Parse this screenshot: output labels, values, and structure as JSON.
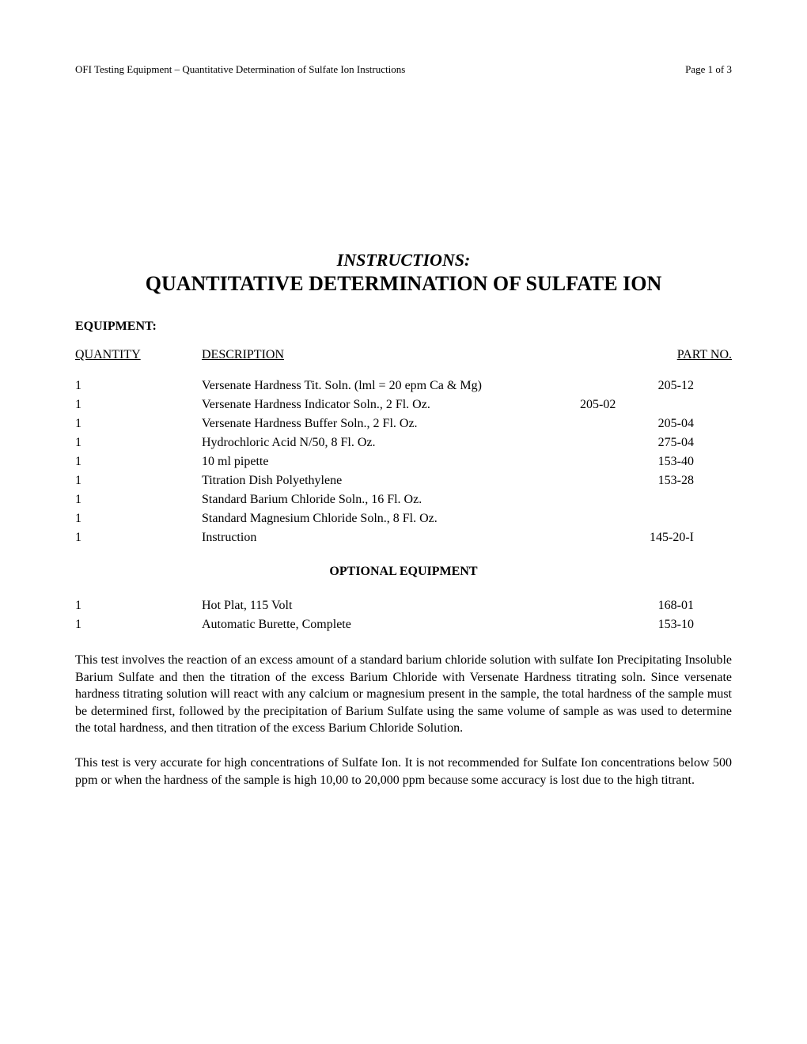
{
  "header": {
    "left": "OFI Testing Equipment – Quantitative Determination of Sulfate Ion Instructions",
    "right": "Page 1 of 3"
  },
  "title": {
    "instructions_label": "INSTRUCTIONS:",
    "main_title": "QUANTITATIVE DETERMINATION OF SULFATE ION"
  },
  "equipment_section": {
    "heading": "EQUIPMENT:",
    "table_headers": {
      "quantity": "QUANTITY",
      "description": "DESCRIPTION",
      "partno": "PART NO."
    },
    "rows": [
      {
        "quantity": "1",
        "description": "Versenate Hardness Tit. Soln. (lml = 20 epm Ca & Mg)",
        "partno": "205-12",
        "offset": false
      },
      {
        "quantity": "1",
        "description": "Versenate Hardness Indicator Soln., 2 Fl. Oz.",
        "partno": "205-02",
        "offset": true
      },
      {
        "quantity": "1",
        "description": "Versenate Hardness Buffer Soln., 2 Fl. Oz.",
        "partno": "205-04",
        "offset": false
      },
      {
        "quantity": "1",
        "description": "Hydrochloric Acid N/50, 8 Fl. Oz.",
        "partno": "275-04",
        "offset": false
      },
      {
        "quantity": "1",
        "description": "10 ml pipette",
        "partno": "153-40",
        "offset": false
      },
      {
        "quantity": "1",
        "description": "Titration Dish Polyethylene",
        "partno": "153-28",
        "offset": false
      },
      {
        "quantity": "1",
        "description": "Standard Barium Chloride Soln., 16 Fl. Oz.",
        "partno": "",
        "offset": false
      },
      {
        "quantity": "1",
        "description": "Standard Magnesium Chloride Soln., 8 Fl. Oz.",
        "partno": "",
        "offset": false
      },
      {
        "quantity": "1",
        "description": "Instruction",
        "partno": "145-20-I",
        "offset": false
      }
    ]
  },
  "optional_section": {
    "heading": "OPTIONAL EQUIPMENT",
    "rows": [
      {
        "quantity": "1",
        "description": "Hot Plat, 115 Volt",
        "partno": "168-01"
      },
      {
        "quantity": "1",
        "description": "Automatic Burette, Complete",
        "partno": "153-10"
      }
    ]
  },
  "paragraphs": {
    "p1": "This test involves the reaction of an excess amount of a standard barium chloride solution with sulfate Ion Precipitating Insoluble Barium Sulfate and then the titration of the excess Barium Chloride with Versenate Hardness titrating soln.  Since versenate hardness titrating solution will react with any calcium or magnesium present in the sample, the total hardness of the sample must be determined first, followed by the precipitation of Barium Sulfate using the same volume of sample as was used to determine the total hardness, and then titration of the excess Barium Chloride Solution.",
    "p2": "This test is very accurate for high concentrations of Sulfate Ion.  It is not recommended for Sulfate Ion concentrations below 500 ppm or when the hardness of the sample is high 10,00 to 20,000 ppm because some accuracy is lost due to the high titrant."
  },
  "styling": {
    "background_color": "#ffffff",
    "text_color": "#000000",
    "font_family": "Times New Roman",
    "body_fontsize": 16,
    "header_fontsize": 13,
    "title_instructions_fontsize": 22,
    "title_main_fontsize": 26
  }
}
